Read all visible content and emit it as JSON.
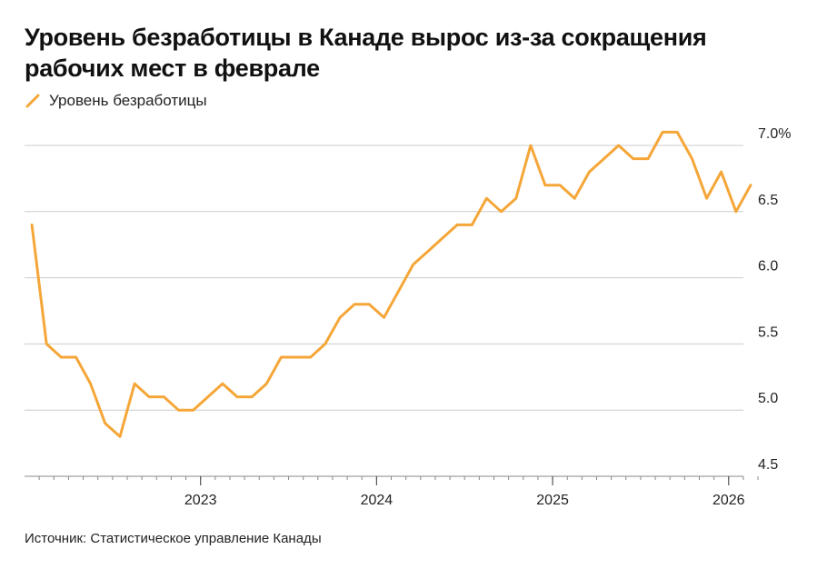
{
  "chart_data": {
    "type": "line",
    "title": "Уровень безработицы в Канаде вырос из-за сокращения рабочих мест в феврале",
    "legend": [
      "Уровень безработицы"
    ],
    "series": [
      {
        "name": "Уровень безработицы",
        "color": "#f5a638",
        "x": [
          2022.042,
          2022.125,
          2022.208,
          2022.292,
          2022.375,
          2022.458,
          2022.542,
          2022.625,
          2022.708,
          2022.792,
          2022.875,
          2022.958,
          2023.042,
          2023.125,
          2023.208,
          2023.292,
          2023.375,
          2023.458,
          2023.542,
          2023.625,
          2023.708,
          2023.792,
          2023.875,
          2023.958,
          2024.042,
          2024.125,
          2024.208,
          2024.292,
          2024.375,
          2024.458,
          2024.542,
          2024.625,
          2024.708,
          2024.792,
          2024.875,
          2024.958,
          2025.042,
          2025.125,
          2025.208,
          2025.292,
          2025.375,
          2025.458,
          2025.542,
          2025.625,
          2025.708,
          2025.792,
          2025.875,
          2025.958,
          2026.042,
          2026.125
        ],
        "values": [
          6.4,
          5.5,
          5.4,
          5.4,
          5.2,
          4.9,
          4.8,
          5.2,
          5.1,
          5.1,
          5.0,
          5.0,
          5.1,
          5.2,
          5.1,
          5.1,
          5.2,
          5.4,
          5.4,
          5.4,
          5.5,
          5.7,
          5.8,
          5.8,
          5.7,
          5.9,
          6.1,
          6.2,
          6.3,
          6.4,
          6.4,
          6.6,
          6.5,
          6.6,
          7.0,
          6.7,
          6.7,
          6.6,
          6.8,
          6.9,
          7.0,
          6.9,
          6.9,
          7.1,
          7.1,
          6.9,
          6.6,
          6.8,
          6.5,
          6.7
        ]
      }
    ],
    "xlim": [
      2022.0,
      2026.28
    ],
    "ylim": [
      4.5,
      7.0
    ],
    "y_ticks": [
      4.5,
      5.0,
      5.5,
      6.0,
      6.5,
      7.0
    ],
    "y_tick_labels": [
      "4.5",
      "5.0",
      "5.5",
      "6.0",
      "6.5",
      "7.0%"
    ],
    "x_ticks": [
      2023,
      2024,
      2025,
      2026
    ],
    "x_tick_labels": [
      "2023",
      "2024",
      "2025",
      "2026"
    ],
    "gridlines": "horizontal",
    "legend_position": "top-left",
    "xlabel": "",
    "ylabel": ""
  },
  "source": "Источник: Статистическое управление Канады",
  "colors": {
    "line": "#f5a638",
    "grid": "#cccccc",
    "axis": "#888888"
  }
}
